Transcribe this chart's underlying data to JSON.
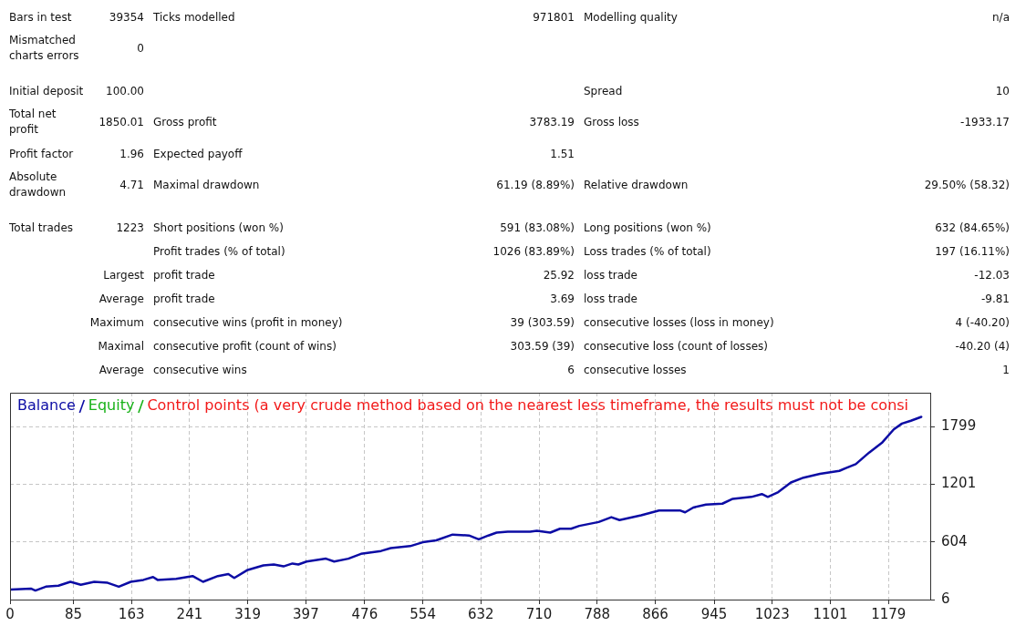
{
  "chart_data": [
    {
      "type": "other",
      "annotations": [
        "Bars in test",
        "39354",
        "Ticks modelled",
        "971801",
        "Modelling quality",
        "n/a",
        "Mismatched charts errors",
        "0",
        "Initial deposit",
        "100.00",
        "Spread",
        "10",
        "Total net profit",
        "1850.01",
        "Gross profit",
        "3783.19",
        "Gross loss",
        "-1933.17",
        "Profit factor",
        "1.96",
        "Expected payoff",
        "1.51",
        "Absolute drawdown",
        "4.71",
        "Maximal drawdown",
        "61.19 (8.89%)",
        "Relative drawdown",
        "29.50% (58.32)",
        "Total trades",
        "1223",
        "Short positions (won %)",
        "591 (83.08%)",
        "Long positions (won %)",
        "632 (84.65%)",
        "Profit trades (% of total)",
        "1026 (83.89%)",
        "Loss trades (% of total)",
        "197 (16.11%)",
        "Largest",
        "profit trade",
        "25.92",
        "loss trade",
        "-12.03",
        "Average",
        "profit trade",
        "3.69",
        "loss trade",
        "-9.81",
        "Maximum",
        "consecutive wins (profit in money)",
        "39 (303.59)",
        "consecutive losses (loss in money)",
        "4 (-40.20)",
        "Maximal",
        "consecutive profit (count of wins)",
        "303.59 (39)",
        "consecutive loss (count of losses)",
        "-40.20 (4)",
        "Average",
        "consecutive wins",
        "6",
        "consecutive losses",
        "1"
      ]
    },
    {
      "type": "line",
      "x": [
        1,
        28,
        34,
        48,
        65,
        81,
        95,
        113,
        131,
        146,
        162,
        179,
        192,
        198,
        223,
        245,
        259,
        279,
        293,
        301,
        318,
        340,
        354,
        367,
        379,
        387,
        398,
        424,
        435,
        454,
        471,
        498,
        511,
        537,
        554,
        572,
        594,
        616,
        629,
        642,
        653,
        668,
        698,
        707,
        725,
        738,
        753,
        764,
        790,
        807,
        818,
        847,
        871,
        899,
        906,
        917,
        934,
        956,
        970,
        995,
        1009,
        1017,
        1031,
        1048,
        1065,
        1087,
        1113,
        1122,
        1135,
        1153,
        1170,
        1186,
        1197,
        1209,
        1223
      ],
      "series": [
        {
          "name": "Balance",
          "color": "#0c0ca4",
          "values": [
            110,
            120,
            100,
            140,
            150,
            190,
            160,
            190,
            180,
            140,
            190,
            210,
            240,
            210,
            220,
            250,
            190,
            250,
            270,
            230,
            310,
            360,
            370,
            350,
            380,
            370,
            400,
            430,
            400,
            430,
            480,
            510,
            540,
            560,
            600,
            620,
            680,
            670,
            630,
            670,
            700,
            710,
            710,
            720,
            700,
            740,
            740,
            770,
            810,
            860,
            830,
            880,
            930,
            930,
            910,
            960,
            990,
            1000,
            1050,
            1070,
            1100,
            1070,
            1120,
            1220,
            1270,
            1310,
            1340,
            1370,
            1410,
            1530,
            1630,
            1770,
            1830,
            1860,
            1900
          ]
        },
        {
          "name": "Equity",
          "color": "#19b219",
          "values": [
            null,
            null,
            null,
            null,
            null,
            null,
            null,
            null,
            null,
            null,
            null,
            null,
            null,
            null,
            null,
            null,
            null,
            null,
            null,
            null,
            null,
            null,
            null,
            null,
            null,
            null,
            null,
            null,
            null,
            null,
            null,
            null,
            null,
            null,
            null,
            null,
            null,
            null,
            null,
            null,
            null,
            null,
            null,
            null,
            null,
            null,
            null,
            null,
            null,
            null,
            null,
            null,
            null,
            null,
            null,
            null,
            null,
            null,
            null,
            null,
            null,
            null,
            null,
            null,
            null,
            null,
            null,
            null,
            null,
            null,
            null,
            null,
            null,
            null,
            null
          ]
        }
      ],
      "xlim": [
        0,
        1235
      ],
      "xticks": [
        0,
        85,
        163,
        241,
        319,
        397,
        476,
        554,
        632,
        710,
        788,
        866,
        945,
        1023,
        1101,
        1179
      ],
      "ylim": [
        6,
        2150
      ],
      "yticks": [
        6,
        604,
        1201,
        1799
      ],
      "grid": true,
      "legend": "top left",
      "annotations": [
        "Control points (a very crude method based on the nearest less timeframe, the results must not be consi"
      ]
    }
  ]
}
